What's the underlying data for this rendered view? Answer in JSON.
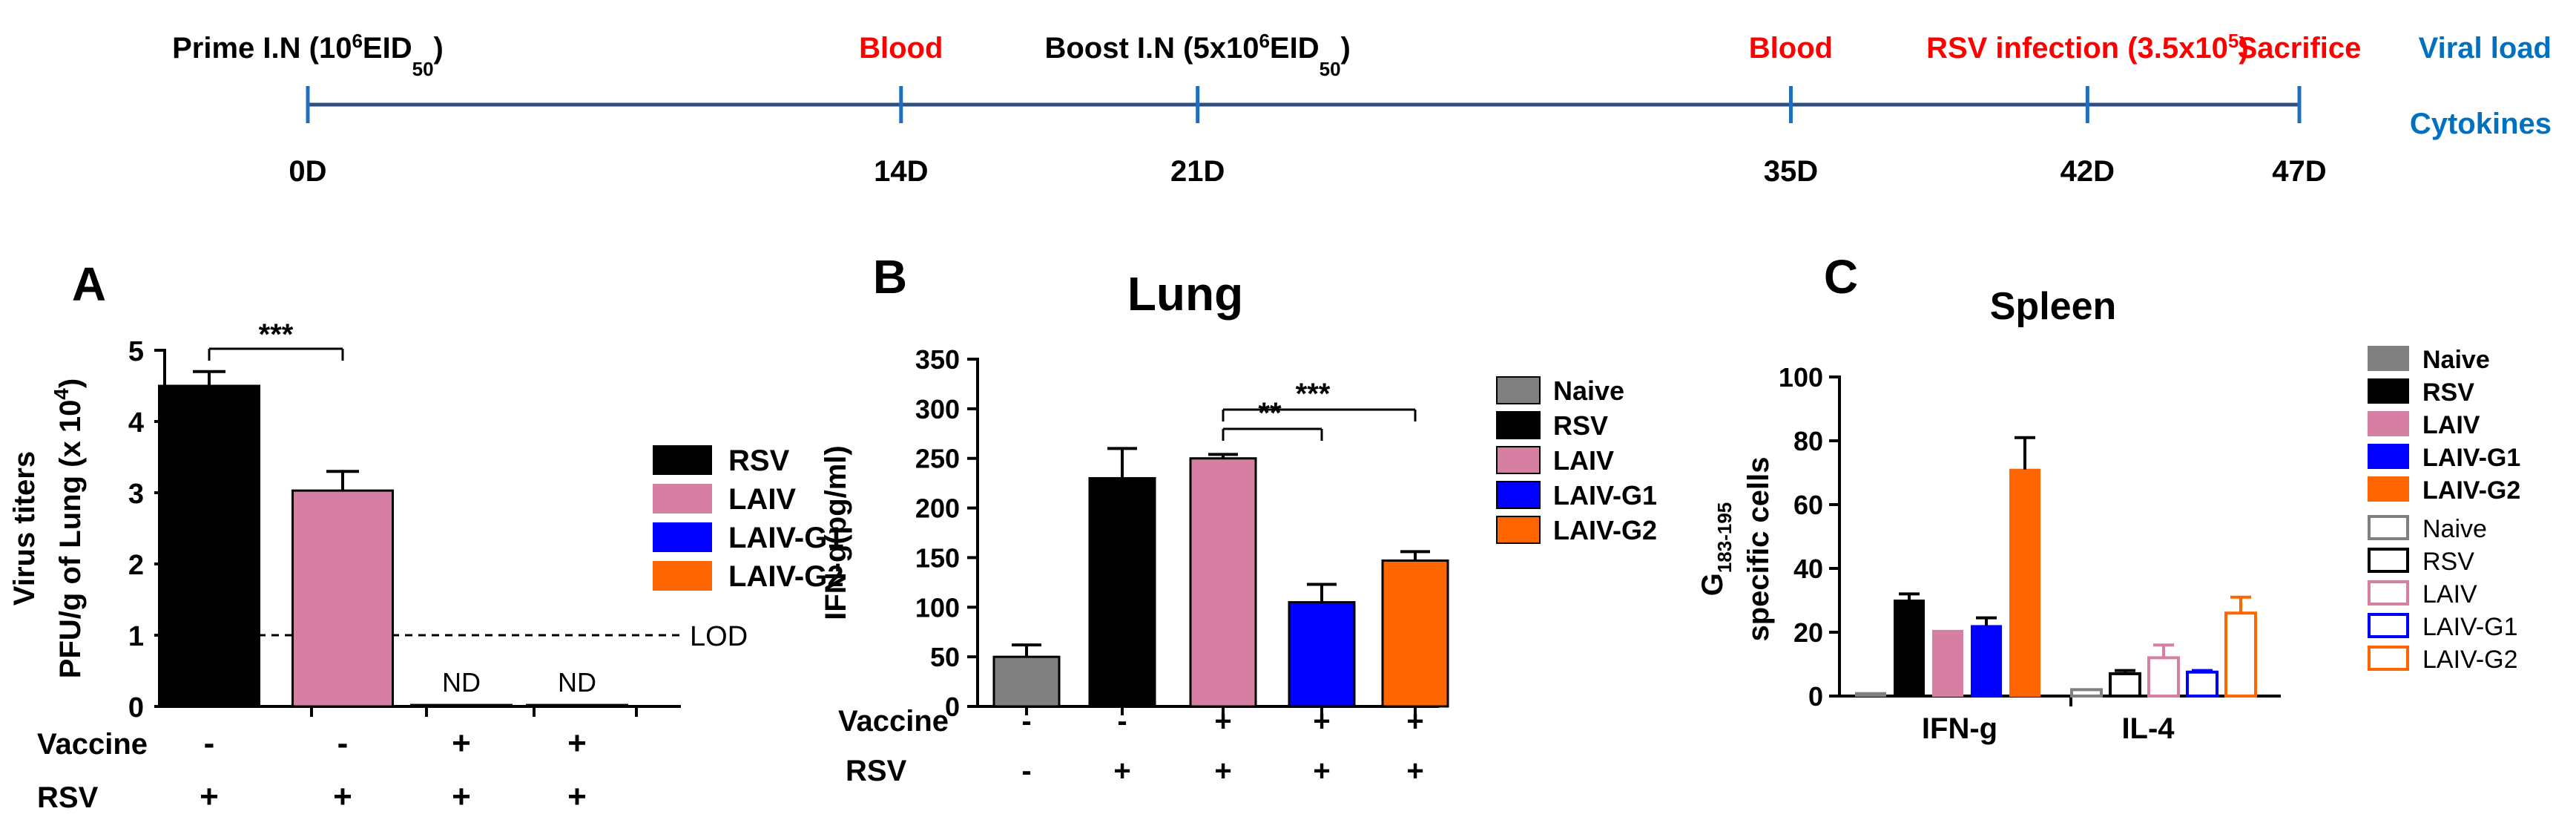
{
  "colors": {
    "naive": "#808080",
    "rsv": "#000000",
    "laiv": "#d67fa3",
    "laiv_g1": "#0000ff",
    "laiv_g2": "#ff6600",
    "event_red": "#ff0000",
    "readout_blue": "#0070c0",
    "timeline": "#2f4f7f"
  },
  "timeline": {
    "events": [
      {
        "day": 0,
        "top_parts": [
          "Prime I.N (10",
          "6",
          "EID",
          "50",
          ")"
        ],
        "color": "black",
        "bottom": "0D"
      },
      {
        "day": 14,
        "top_parts": [
          "Blood"
        ],
        "color": "red",
        "bottom": "14D"
      },
      {
        "day": 21,
        "top_parts": [
          "Boost I.N (5x10",
          "6",
          "EID",
          "50",
          ")"
        ],
        "color": "black",
        "bottom": "21D"
      },
      {
        "day": 35,
        "top_parts": [
          "Blood"
        ],
        "color": "red",
        "bottom": "35D"
      },
      {
        "day": 42,
        "top_parts": [
          "RSV infection (3.5x10",
          "5",
          ")"
        ],
        "color": "red",
        "bottom": "42D"
      },
      {
        "day": 47,
        "top_parts": [
          "Sacrifice"
        ],
        "color": "red",
        "bottom": "47D"
      }
    ],
    "readout": [
      "Viral load",
      "Cytokines"
    ]
  },
  "chart_data": [
    {
      "panel": "A",
      "type": "bar",
      "title": "",
      "ylabel_lines": [
        "Virus titers",
        "PFU/g of Lung (x 10",
        "4",
        ")"
      ],
      "ylim": [
        0,
        5
      ],
      "yticks": [
        "0",
        "1",
        "2",
        "3",
        "4",
        "5"
      ],
      "categories": [
        "RSV",
        "LAIV",
        "LAIV-G1",
        "LAIV-G2"
      ],
      "values": [
        4.5,
        3.03,
        0.02,
        0.02
      ],
      "errors": [
        0.2,
        0.27,
        0,
        0
      ],
      "bar_labels": [
        "",
        "",
        "ND",
        "ND"
      ],
      "lod": {
        "value": 1,
        "label": "LOD"
      },
      "significance": [
        {
          "from": 0,
          "to": 1,
          "label": "***"
        }
      ],
      "condition_rows": [
        {
          "label": "Vaccine",
          "values": [
            "-",
            "-",
            "+",
            "+"
          ]
        },
        {
          "label": "RSV",
          "values": [
            "+",
            "+",
            "+",
            "+"
          ]
        }
      ],
      "legend": [
        "RSV",
        "LAIV",
        "LAIV-G1",
        "LAIV-G2"
      ]
    },
    {
      "panel": "B",
      "type": "bar",
      "title": "Lung",
      "ylabel": "IFN-g(pg/ml)",
      "ylim": [
        0,
        350
      ],
      "yticks": [
        "0",
        "50",
        "100",
        "150",
        "200",
        "250",
        "300",
        "350"
      ],
      "categories": [
        "Naive",
        "RSV",
        "LAIV",
        "LAIV-G1",
        "LAIV-G2"
      ],
      "values": [
        50,
        230,
        250,
        105,
        147
      ],
      "errors": [
        12,
        30,
        4,
        18,
        9
      ],
      "significance": [
        {
          "from": 2,
          "to": 3,
          "label": "**"
        },
        {
          "from": 2,
          "to": 4,
          "label": "***"
        }
      ],
      "condition_rows": [
        {
          "label": "Vaccine",
          "values": [
            "-",
            "-",
            "+",
            "+",
            "+"
          ]
        },
        {
          "label": "RSV",
          "values": [
            "-",
            "+",
            "+",
            "+",
            "+"
          ]
        }
      ],
      "legend": [
        "Naive",
        "RSV",
        "LAIV",
        "LAIV-G1",
        "LAIV-G2"
      ]
    },
    {
      "panel": "C",
      "type": "bar",
      "title": "Spleen",
      "ylabel_lines": [
        "G",
        "183-195",
        "specific cells"
      ],
      "ylim": [
        0,
        100
      ],
      "yticks": [
        "0",
        "20",
        "40",
        "60",
        "80",
        "100"
      ],
      "groups": [
        "IFN-g",
        "IL-4"
      ],
      "series": [
        {
          "name": "Naive",
          "values": [
            1,
            2
          ],
          "errors": [
            0,
            0
          ]
        },
        {
          "name": "RSV",
          "values": [
            30,
            7
          ],
          "errors": [
            2,
            1
          ]
        },
        {
          "name": "LAIV",
          "values": [
            20.5,
            12
          ],
          "errors": [
            0,
            4
          ]
        },
        {
          "name": "LAIV-G1",
          "values": [
            22,
            7.5
          ],
          "errors": [
            2.5,
            0.5
          ]
        },
        {
          "name": "LAIV-G2",
          "values": [
            71,
            26
          ],
          "errors": [
            10,
            5
          ]
        }
      ],
      "legend_filled": [
        "Naive",
        "RSV",
        "LAIV",
        "LAIV-G1",
        "LAIV-G2"
      ],
      "legend_open": [
        "Naive",
        "RSV",
        "LAIV",
        "LAIV-G1",
        "LAIV-G2"
      ]
    }
  ]
}
